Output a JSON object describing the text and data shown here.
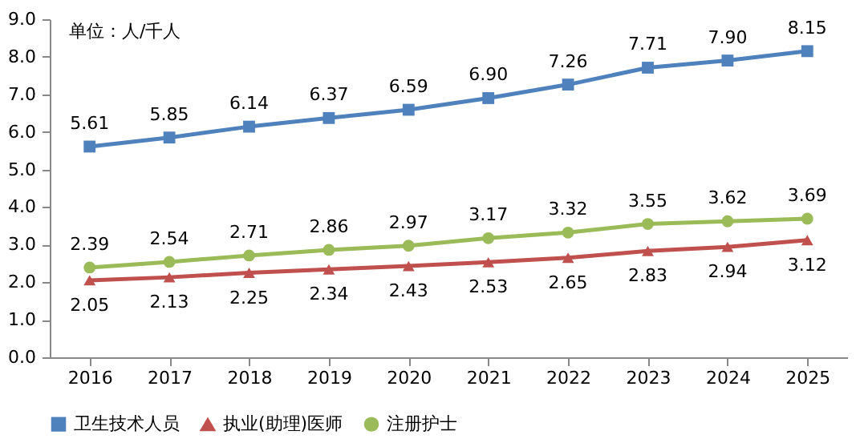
{
  "chart_data": {
    "type": "line",
    "categories": [
      "2016",
      "2017",
      "2018",
      "2019",
      "2020",
      "2021",
      "2022",
      "2023",
      "2024",
      "2025"
    ],
    "series": [
      {
        "name": "卫生技术人员",
        "color": "#4f81bd",
        "marker": "square",
        "values": [
          5.61,
          5.85,
          6.14,
          6.37,
          6.59,
          6.9,
          7.26,
          7.71,
          7.9,
          8.15
        ],
        "value_labels": [
          "5.61",
          "5.85",
          "6.14",
          "6.37",
          "6.59",
          "6.90",
          "7.26",
          "7.71",
          "7.90",
          "8.15"
        ]
      },
      {
        "name": "执业(助理)医师",
        "color": "#c0504d",
        "marker": "triangle",
        "values": [
          2.05,
          2.13,
          2.25,
          2.34,
          2.43,
          2.53,
          2.65,
          2.83,
          2.94,
          3.12
        ],
        "value_labels": [
          "2.05",
          "2.13",
          "2.25",
          "2.34",
          "2.43",
          "2.53",
          "2.65",
          "2.83",
          "2.94",
          "3.12"
        ]
      },
      {
        "name": "注册护士",
        "color": "#9bbb59",
        "marker": "circle",
        "values": [
          2.39,
          2.54,
          2.71,
          2.86,
          2.97,
          3.17,
          3.32,
          3.55,
          3.62,
          3.69
        ],
        "value_labels": [
          "2.39",
          "2.54",
          "2.71",
          "2.86",
          "2.97",
          "3.17",
          "3.32",
          "3.55",
          "3.62",
          "3.69"
        ]
      }
    ],
    "ylim": [
      0,
      9
    ],
    "yticks": [
      {
        "value": 0,
        "label": "0.0"
      },
      {
        "value": 1,
        "label": "1.0"
      },
      {
        "value": 2,
        "label": "2.0"
      },
      {
        "value": 3,
        "label": "3.0"
      },
      {
        "value": 4,
        "label": "4.0"
      },
      {
        "value": 5,
        "label": "5.0"
      },
      {
        "value": 6,
        "label": "6.0"
      },
      {
        "value": 7,
        "label": "7.0"
      },
      {
        "value": 8,
        "label": "8.0"
      },
      {
        "value": 9,
        "label": "9.0"
      }
    ],
    "annotations": [
      "单位：人/千人"
    ],
    "data_labels": true,
    "grid": false,
    "legend": "bottom",
    "line_style": "solid"
  }
}
